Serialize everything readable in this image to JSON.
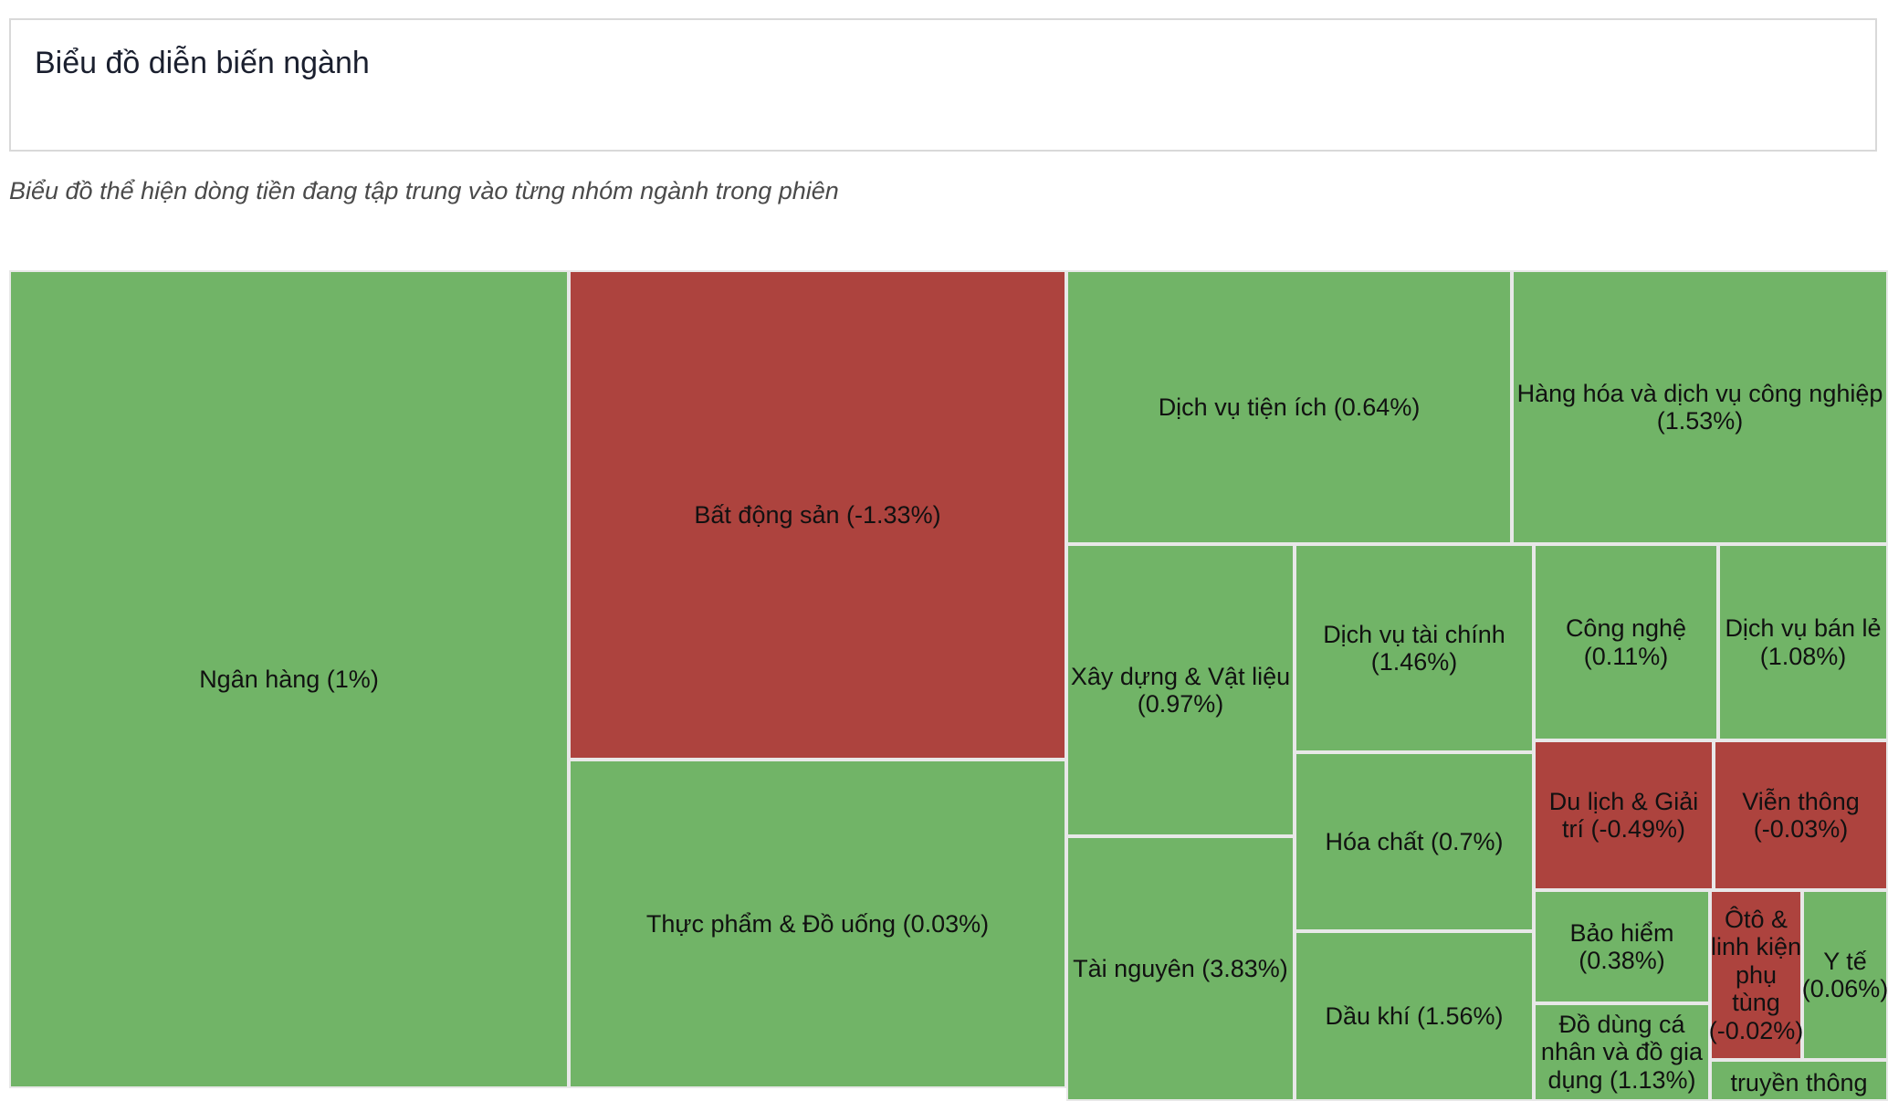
{
  "header": {
    "title": "Biểu đồ diễn biến ngành"
  },
  "subtitle": "Biểu đồ thể hiện dòng tiền đang tập trung vào từng nhóm ngành trong phiên",
  "colors": {
    "positive": "#71b467",
    "negative": "#ad433e",
    "border": "#e8e8e8"
  },
  "chart_data": {
    "type": "treemap",
    "title": "Biểu đồ diễn biến ngành",
    "items": [
      {
        "name": "Ngân hàng",
        "change_pct": 1
      },
      {
        "name": "Bất động sản",
        "change_pct": -1.33
      },
      {
        "name": "Thực phẩm & Đồ uống",
        "change_pct": 0.03
      },
      {
        "name": "Dịch vụ tiện ích",
        "change_pct": 0.64
      },
      {
        "name": "Hàng hóa và dịch vụ công nghiệp",
        "change_pct": 1.53
      },
      {
        "name": "Xây dựng & Vật liệu",
        "change_pct": 0.97
      },
      {
        "name": "Tài nguyên",
        "change_pct": 3.83
      },
      {
        "name": "Dịch vụ tài chính",
        "change_pct": 1.46
      },
      {
        "name": "Hóa chất",
        "change_pct": 0.7
      },
      {
        "name": "Dầu khí",
        "change_pct": 1.56
      },
      {
        "name": "Công nghệ",
        "change_pct": 0.11
      },
      {
        "name": "Dịch vụ bán lẻ",
        "change_pct": 1.08
      },
      {
        "name": "Du lịch & Giải trí",
        "change_pct": -0.49
      },
      {
        "name": "Viễn thông",
        "change_pct": -0.03
      },
      {
        "name": "Bảo hiểm",
        "change_pct": 0.38
      },
      {
        "name": "Đồ dùng cá nhân và đồ gia dụng",
        "change_pct": 1.13
      },
      {
        "name": "Ôtô & linh kiện phụ tùng",
        "change_pct": -0.02
      },
      {
        "name": "Y tế",
        "change_pct": 0.06
      },
      {
        "name": "Truyền thông",
        "change_pct": null
      }
    ]
  },
  "tiles": [
    {
      "name": "tile-ngan-hang",
      "label": "Ngân hàng (1%)"
    },
    {
      "name": "tile-bat-dong-san",
      "label": "Bất động sản (-1.33%)"
    },
    {
      "name": "tile-thuc-pham-do-uong",
      "label": "Thực phẩm & Đồ uống (0.03%)"
    },
    {
      "name": "tile-dich-vu-tien-ich",
      "label": "Dịch vụ tiện ích (0.64%)"
    },
    {
      "name": "tile-hang-hoa-dich-vu-cong-nghiep",
      "label": "Hàng hóa và dịch vụ công nghiệp (1.53%)"
    },
    {
      "name": "tile-xay-dung-vat-lieu",
      "label": "Xây dựng & Vật liệu (0.97%)"
    },
    {
      "name": "tile-tai-nguyen",
      "label": "Tài nguyên (3.83%)"
    },
    {
      "name": "tile-dich-vu-tai-chinh",
      "label": "Dịch vụ tài chính (1.46%)"
    },
    {
      "name": "tile-hoa-chat",
      "label": "Hóa chất (0.7%)"
    },
    {
      "name": "tile-dau-khi",
      "label": "Dầu khí (1.56%)"
    },
    {
      "name": "tile-cong-nghe",
      "label": "Công nghệ (0.11%)"
    },
    {
      "name": "tile-dich-vu-ban-le",
      "label": "Dịch vụ bán lẻ (1.08%)"
    },
    {
      "name": "tile-du-lich-giai-tri",
      "label": "Du lịch & Giải trí (-0.49%)"
    },
    {
      "name": "tile-vien-thong",
      "label": "Viễn thông (-0.03%)"
    },
    {
      "name": "tile-bao-hiem",
      "label": "Bảo hiểm (0.38%)"
    },
    {
      "name": "tile-do-dung-ca-nhan-gia-dung",
      "label": "Đồ dùng cá nhân và đồ gia dụng (1.13%)"
    },
    {
      "name": "tile-oto-linh-kien-phu-tung",
      "label": "Ôtô & linh kiện phụ tùng (-0.02%)"
    },
    {
      "name": "tile-y-te",
      "label": "Y tế (0.06%)"
    },
    {
      "name": "tile-truyen-thong",
      "label": "truyền thông"
    }
  ]
}
